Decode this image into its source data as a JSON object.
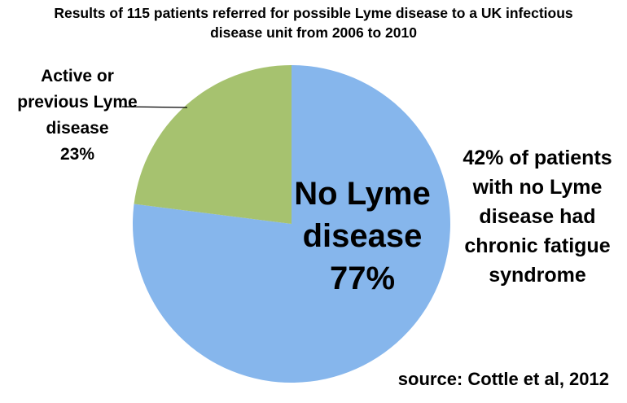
{
  "chart_data": {
    "type": "pie",
    "title": "Results of 115 patients referred for possible Lyme disease to a UK infectious disease unit from 2006 to 2010",
    "categories": [
      "No Lyme disease",
      "Active or previous Lyme disease"
    ],
    "values": [
      77,
      23
    ],
    "value_labels": [
      "77%",
      "23%"
    ],
    "colors": [
      "#86b6ec",
      "#a6c26f"
    ],
    "annotation": "42% of patients with no Lyme disease had chronic fatigue syndrome",
    "source": "source: Cottle et al, 2012"
  }
}
